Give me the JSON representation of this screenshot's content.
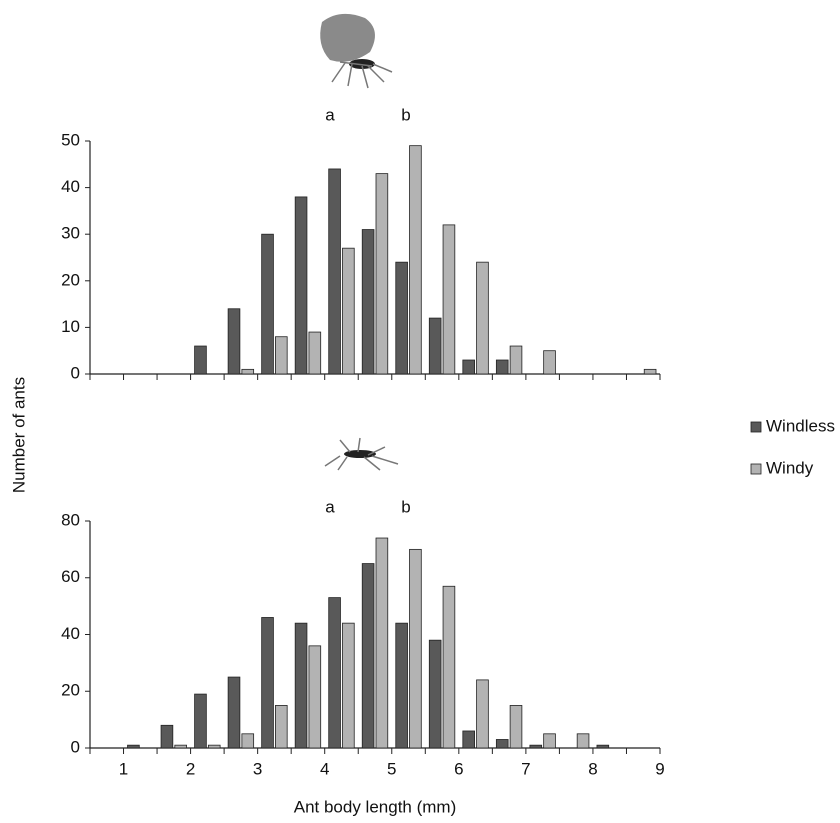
{
  "chart_data": [
    {
      "type": "histogram",
      "ylabel": "Number of ants",
      "annotations": [
        "a",
        "b"
      ],
      "bins": [
        0.5,
        1,
        1.5,
        2,
        2.5,
        3,
        3.5,
        4,
        4.5,
        5,
        5.5,
        6,
        6.5,
        7,
        7.5,
        8,
        8.5,
        9
      ],
      "xlim": [
        0.5,
        9
      ],
      "ylim": [
        0,
        50
      ],
      "yticks": [
        0,
        10,
        20,
        30,
        40,
        50
      ],
      "legend": "right",
      "series": [
        {
          "name": "Windless",
          "color": "#595959",
          "values": [
            0,
            0,
            0,
            6,
            14,
            30,
            38,
            44,
            31,
            24,
            12,
            3,
            3,
            0,
            0,
            0,
            0
          ]
        },
        {
          "name": "Windy",
          "color": "#b3b3b3",
          "values": [
            0,
            0,
            0,
            0,
            1,
            8,
            9,
            27,
            43,
            49,
            32,
            24,
            6,
            5,
            0,
            0,
            1
          ]
        }
      ]
    },
    {
      "type": "histogram",
      "xlabel": "Ant body length (mm)",
      "annotations": [
        "a",
        "b"
      ],
      "bins": [
        0.5,
        1,
        1.5,
        2,
        2.5,
        3,
        3.5,
        4,
        4.5,
        5,
        5.5,
        6,
        6.5,
        7,
        7.5,
        8,
        8.5,
        9
      ],
      "xlim": [
        0.5,
        9
      ],
      "xticks": [
        1,
        2,
        3,
        4,
        5,
        6,
        7,
        8,
        9
      ],
      "ylim": [
        0,
        80
      ],
      "yticks": [
        0,
        20,
        40,
        60,
        80
      ],
      "series": [
        {
          "color": "#595959",
          "values": [
            0,
            1,
            8,
            19,
            25,
            46,
            44,
            53,
            65,
            44,
            38,
            6,
            3,
            1,
            0,
            1,
            0
          ]
        },
        {
          "color": "#b3b3b3",
          "values": [
            0,
            0,
            1,
            1,
            5,
            15,
            36,
            44,
            74,
            70,
            57,
            24,
            15,
            5,
            5,
            0,
            0
          ]
        }
      ]
    }
  ]
}
